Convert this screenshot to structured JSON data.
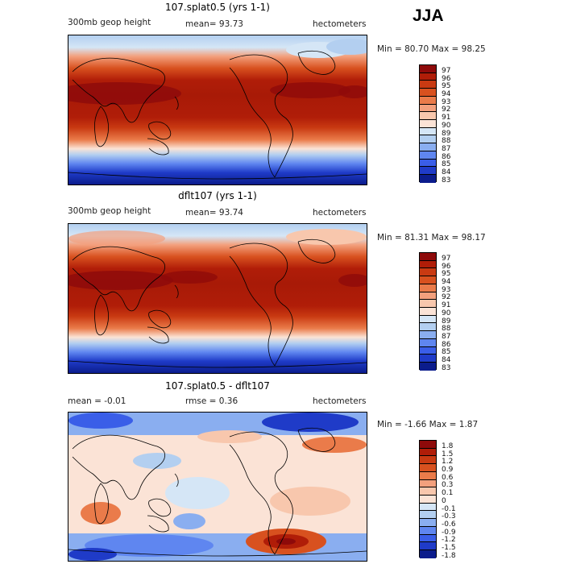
{
  "season": "JJA",
  "panels": [
    {
      "title": "107.splat0.5 (yrs 1-1)",
      "field_label": "300mb geop height",
      "stat": "mean=   93.73",
      "units": "hectometers",
      "minmax": "Min =   80.70  Max =   98.25",
      "levels": [
        "97",
        "96",
        "95",
        "94",
        "93",
        "92",
        "91",
        "90",
        "89",
        "88",
        "87",
        "86",
        "85",
        "84",
        "83"
      ]
    },
    {
      "title": "dflt107 (yrs 1-1)",
      "field_label": "300mb geop height",
      "stat": "mean=   93.74",
      "units": "hectometers",
      "minmax": "Min =   81.31  Max =   98.17",
      "levels": [
        "97",
        "96",
        "95",
        "94",
        "93",
        "92",
        "91",
        "90",
        "89",
        "88",
        "87",
        "86",
        "85",
        "84",
        "83"
      ]
    },
    {
      "title": "107.splat0.5 - dflt107",
      "field_label": "mean =   -0.01",
      "stat": "rmse =    0.36",
      "units": "hectometers",
      "minmax": "Min =  -1.66  Max =    1.87",
      "levels": [
        "1.8",
        "1.5",
        "1.2",
        "0.9",
        "0.6",
        "0.3",
        "0.1",
        "0",
        "-0.1",
        "-0.3",
        "-0.6",
        "-0.9",
        "-1.2",
        "-1.5",
        "-1.8"
      ]
    }
  ],
  "colors": {
    "height_scale": [
      "#8e0a0a",
      "#b01d08",
      "#c93a12",
      "#d8511f",
      "#ea7b4a",
      "#f3a07d",
      "#f8c7ad",
      "#fbe3d6",
      "#d5e6f6",
      "#b3cff0",
      "#8aaef0",
      "#5f86f0",
      "#3a5ee8",
      "#1f3bc8",
      "#0b1c8c"
    ],
    "diff_scale": [
      "#8e0a0a",
      "#b01d08",
      "#c93a12",
      "#d8511f",
      "#ea7b4a",
      "#f3a07d",
      "#f8c7ad",
      "#fbe3d6",
      "#d5e6f6",
      "#b3cff0",
      "#8aaef0",
      "#5f86f0",
      "#3a5ee8",
      "#1f3bc8",
      "#0b1c8c"
    ]
  }
}
